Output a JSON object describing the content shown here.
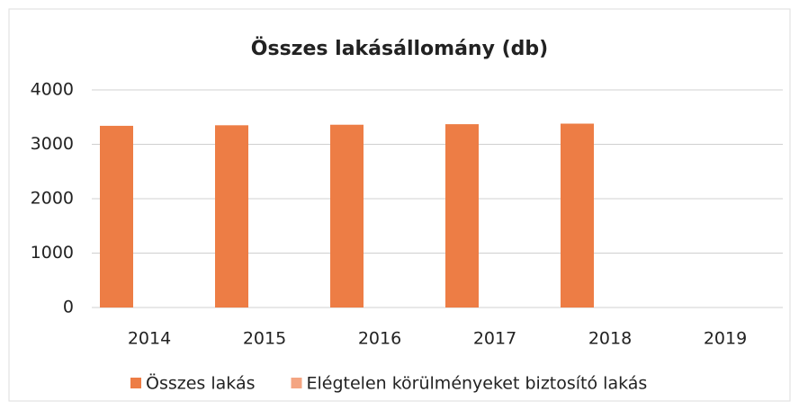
{
  "chart_data": {
    "type": "bar",
    "title": "Összes lakásállomány (db)",
    "categories": [
      "2014",
      "2015",
      "2016",
      "2017",
      "2018",
      "2019"
    ],
    "series": [
      {
        "name": "Összes lakás",
        "color": "#ed7d45",
        "values": [
          3340,
          3350,
          3360,
          3370,
          3380,
          null
        ]
      },
      {
        "name": "Elégtelen körülményeket biztosító lakás",
        "color": "#f4a582",
        "values": [
          0,
          0,
          0,
          0,
          0,
          null
        ]
      }
    ],
    "ylim": [
      0,
      4000
    ],
    "yticks": [
      0,
      1000,
      2000,
      3000,
      4000
    ],
    "grid": true,
    "legend": "bottom"
  }
}
